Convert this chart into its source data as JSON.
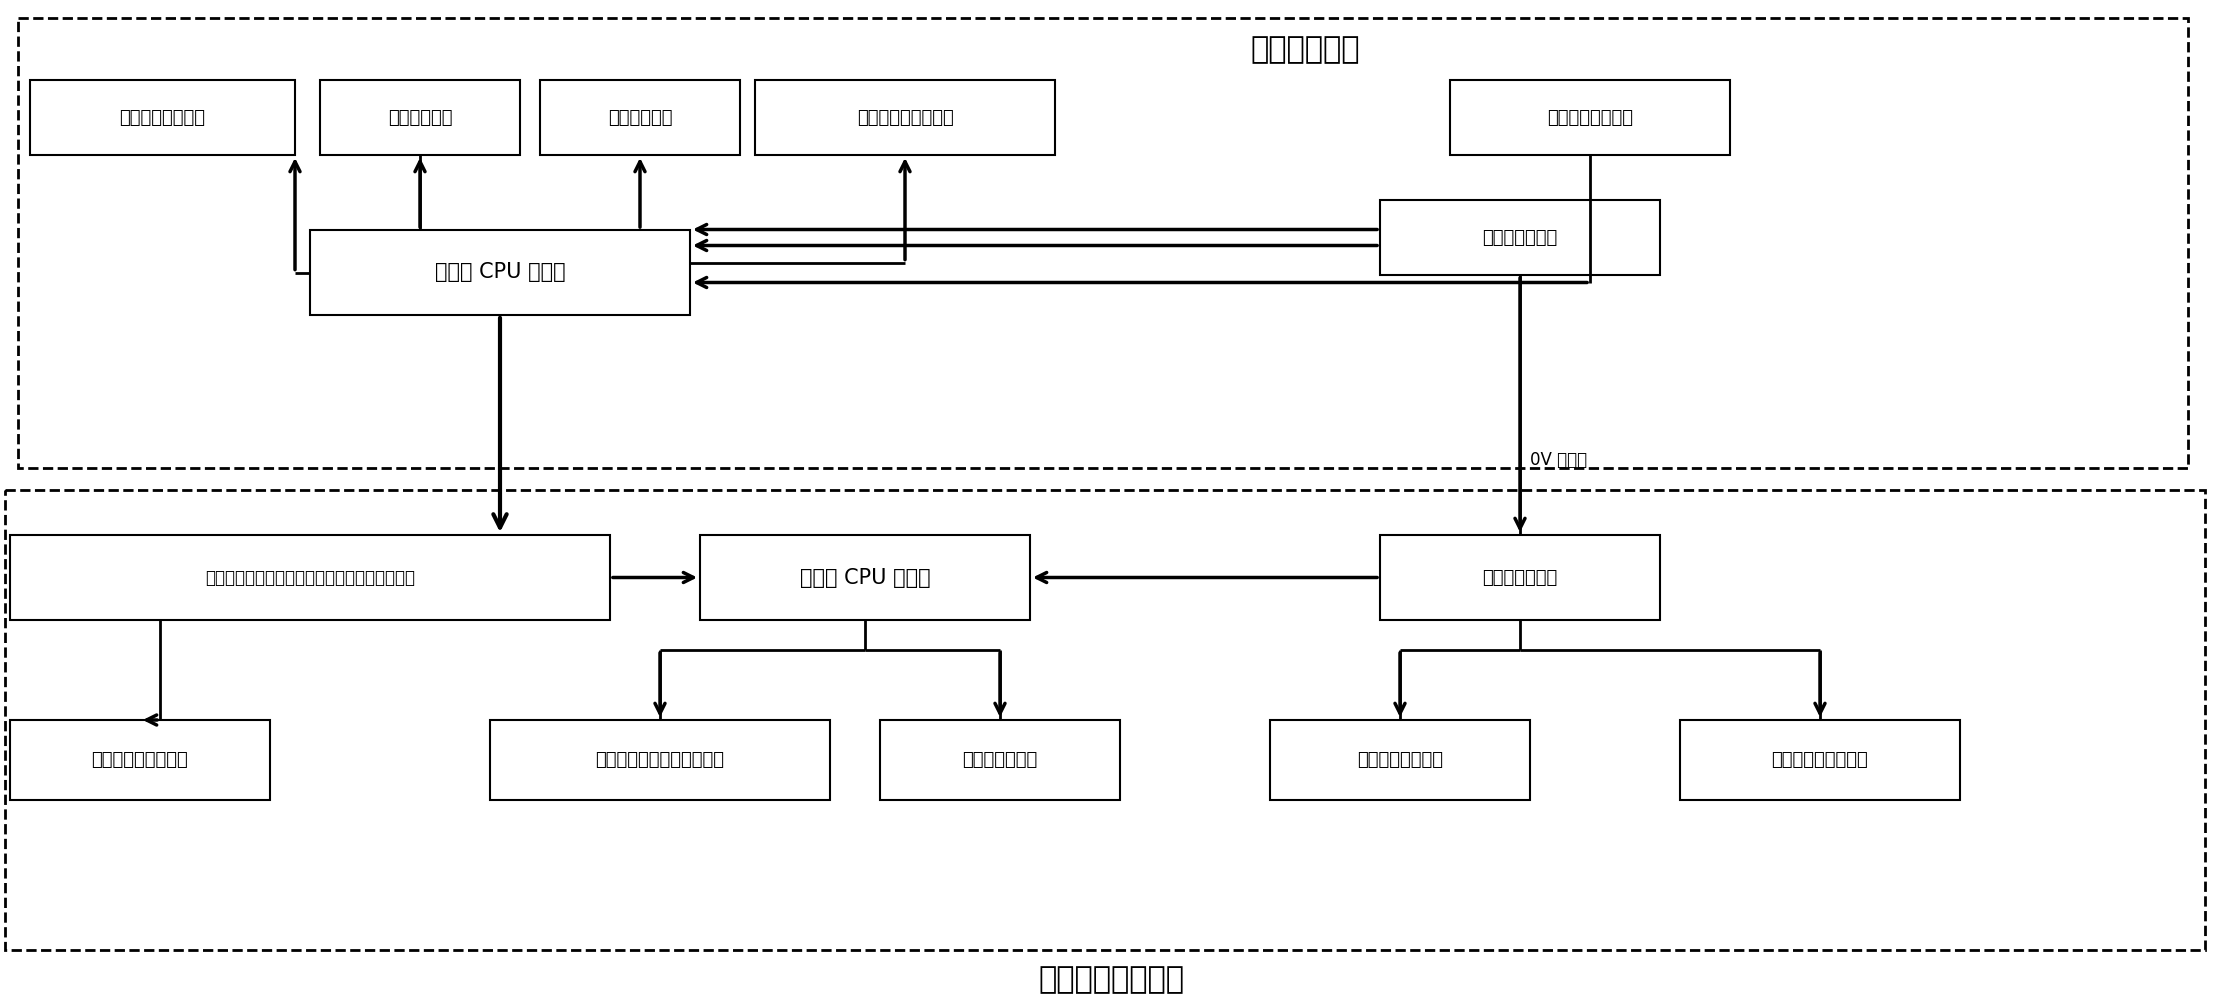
{
  "indoor_controller_label": "室内机控制器",
  "outdoor_controller_label": "室外机变频控制器",
  "label_0v": "0V 直流地",
  "blocks": {
    "indoor_fan": "室内风扇控制电路",
    "wind_dir": "风向电机电路",
    "buzzer": "蜂鸣控制电路",
    "display": "显示及红外遥控电路",
    "temp": "温度检测单元电路",
    "indoor_cpu": "室内机 CPU 主芯片",
    "indoor_power": "室内机电源电路",
    "compressor_protect": "压缩机排气温度、过压、过流检测保护单元电路",
    "outdoor_cpu": "室外机 CPU 主芯片",
    "outdoor_power": "室外机电源电路",
    "compressor_drive": "压缩机驱动单元电路",
    "outdoor_fan": "室外风扇电机控制单元电路",
    "four_way": "四通阀驱动电路",
    "heat": "制热信号检测矩阵",
    "solenoid": "电磁阀控制单元电路"
  },
  "bg_color": "#ffffff",
  "box_edge_color": "#000000",
  "arrow_color": "#000000",
  "font_color": "#000000"
}
